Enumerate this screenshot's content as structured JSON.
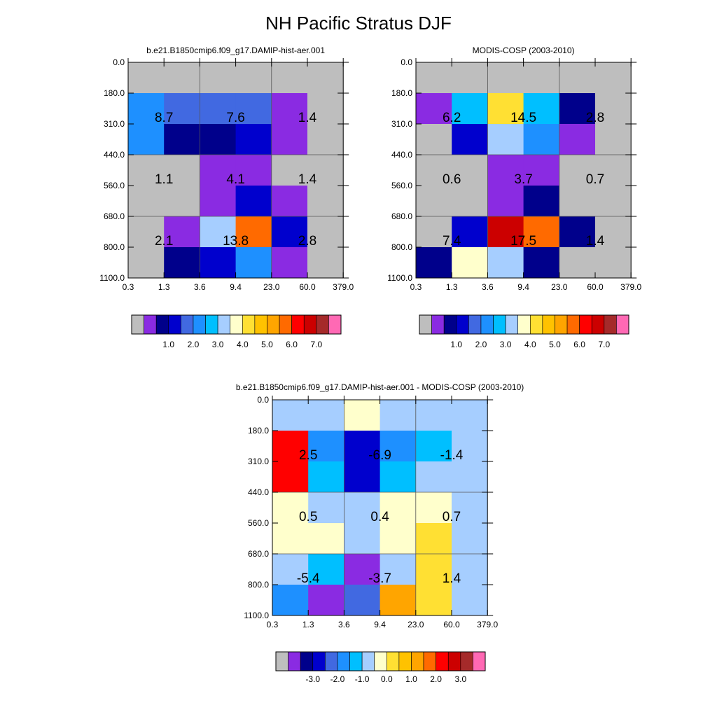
{
  "title": "NH Pacific Stratus DJF",
  "chart_data": [
    {
      "type": "heatmap",
      "title": "b.e21.B1850cmip6.f09_g17.DAMIP-hist-aer.001",
      "x_ticks": [
        "0.3",
        "1.3",
        "3.6",
        "9.4",
        "23.0",
        "60.0",
        "379.0"
      ],
      "y_ticks": [
        "0.0",
        "180.0",
        "310.0",
        "440.0",
        "560.0",
        "680.0",
        "800.0",
        "1100.0"
      ],
      "cells": [
        [
          "#BEBEBE",
          "#BEBEBE",
          "#BEBEBE",
          "#BEBEBE",
          "#BEBEBE",
          "#BEBEBE"
        ],
        [
          "#1E90FF",
          "#4169E1",
          "#4169E1",
          "#4169E1",
          "#8A2BE2",
          "#BEBEBE"
        ],
        [
          "#1E90FF",
          "#00008B",
          "#00008B",
          "#0000CD",
          "#8A2BE2",
          "#BEBEBE"
        ],
        [
          "#BEBEBE",
          "#BEBEBE",
          "#8A2BE2",
          "#8A2BE2",
          "#BEBEBE",
          "#BEBEBE"
        ],
        [
          "#BEBEBE",
          "#BEBEBE",
          "#8A2BE2",
          "#0000CD",
          "#8A2BE2",
          "#BEBEBE"
        ],
        [
          "#BEBEBE",
          "#8A2BE2",
          "#A6CEFF",
          "#FF6A00",
          "#0000CD",
          "#BEBEBE"
        ],
        [
          "#BEBEBE",
          "#00008B",
          "#0000CD",
          "#1E90FF",
          "#8A2BE2",
          "#BEBEBE"
        ]
      ],
      "labels": [
        {
          "row": 1,
          "col": 1,
          "text": "8.7"
        },
        {
          "row": 1,
          "col": 3,
          "text": "7.6"
        },
        {
          "row": 1,
          "col": 5,
          "text": "1.4"
        },
        {
          "row": 3,
          "col": 1,
          "text": "1.1"
        },
        {
          "row": 3,
          "col": 3,
          "text": "4.1"
        },
        {
          "row": 3,
          "col": 5,
          "text": "1.4"
        },
        {
          "row": 5,
          "col": 1,
          "text": "2.1"
        },
        {
          "row": 5,
          "col": 3,
          "text": "13.8"
        },
        {
          "row": 5,
          "col": 5,
          "text": "2.8"
        }
      ],
      "colorbar": {
        "colors": [
          "#BEBEBE",
          "#8A2BE2",
          "#00008B",
          "#0000CD",
          "#4169E1",
          "#1E90FF",
          "#00BFFF",
          "#A6CEFF",
          "#FFFFCC",
          "#FFE033",
          "#FFC200",
          "#FFA500",
          "#FF6A00",
          "#FF0000",
          "#CC0000",
          "#A52A2A",
          "#FF69B4"
        ],
        "labels": [
          "1.0",
          "2.0",
          "3.0",
          "4.0",
          "5.0",
          "6.0",
          "7.0"
        ]
      }
    },
    {
      "type": "heatmap",
      "title": "MODIS-COSP (2003-2010)",
      "x_ticks": [
        "0.3",
        "1.3",
        "3.6",
        "9.4",
        "23.0",
        "60.0",
        "379.0"
      ],
      "y_ticks": [
        "0.0",
        "180.0",
        "310.0",
        "440.0",
        "560.0",
        "680.0",
        "800.0",
        "1100.0"
      ],
      "cells": [
        [
          "#BEBEBE",
          "#BEBEBE",
          "#BEBEBE",
          "#BEBEBE",
          "#BEBEBE",
          "#BEBEBE"
        ],
        [
          "#8A2BE2",
          "#00BFFF",
          "#FFE033",
          "#00BFFF",
          "#00008B",
          "#BEBEBE"
        ],
        [
          "#BEBEBE",
          "#0000CD",
          "#A6CEFF",
          "#1E90FF",
          "#8A2BE2",
          "#BEBEBE"
        ],
        [
          "#BEBEBE",
          "#BEBEBE",
          "#8A2BE2",
          "#8A2BE2",
          "#BEBEBE",
          "#BEBEBE"
        ],
        [
          "#BEBEBE",
          "#BEBEBE",
          "#8A2BE2",
          "#00008B",
          "#BEBEBE",
          "#BEBEBE"
        ],
        [
          "#BEBEBE",
          "#0000CD",
          "#CC0000",
          "#FF6A00",
          "#00008B",
          "#BEBEBE"
        ],
        [
          "#00008B",
          "#FFFFCC",
          "#A6CEFF",
          "#00008B",
          "#BEBEBE",
          "#BEBEBE"
        ]
      ],
      "labels": [
        {
          "row": 1,
          "col": 1,
          "text": "6.2"
        },
        {
          "row": 1,
          "col": 3,
          "text": "14.5"
        },
        {
          "row": 1,
          "col": 5,
          "text": "2.8"
        },
        {
          "row": 3,
          "col": 1,
          "text": "0.6"
        },
        {
          "row": 3,
          "col": 3,
          "text": "3.7"
        },
        {
          "row": 3,
          "col": 5,
          "text": "0.7"
        },
        {
          "row": 5,
          "col": 1,
          "text": "7.4"
        },
        {
          "row": 5,
          "col": 3,
          "text": "17.5"
        },
        {
          "row": 5,
          "col": 5,
          "text": "1.4"
        }
      ],
      "colorbar": {
        "colors": [
          "#BEBEBE",
          "#8A2BE2",
          "#00008B",
          "#0000CD",
          "#4169E1",
          "#1E90FF",
          "#00BFFF",
          "#A6CEFF",
          "#FFFFCC",
          "#FFE033",
          "#FFC200",
          "#FFA500",
          "#FF6A00",
          "#FF0000",
          "#CC0000",
          "#A52A2A",
          "#FF69B4"
        ],
        "labels": [
          "1.0",
          "2.0",
          "3.0",
          "4.0",
          "5.0",
          "6.0",
          "7.0"
        ]
      }
    },
    {
      "type": "heatmap",
      "title": "b.e21.B1850cmip6.f09_g17.DAMIP-hist-aer.001 - MODIS-COSP (2003-2010)",
      "x_ticks": [
        "0.3",
        "1.3",
        "3.6",
        "9.4",
        "23.0",
        "60.0",
        "379.0"
      ],
      "y_ticks": [
        "0.0",
        "180.0",
        "310.0",
        "440.0",
        "560.0",
        "680.0",
        "800.0",
        "1100.0"
      ],
      "cells": [
        [
          "#A6CEFF",
          "#A6CEFF",
          "#FFFFCC",
          "#A6CEFF",
          "#A6CEFF",
          "#A6CEFF"
        ],
        [
          "#FF0000",
          "#1E90FF",
          "#0000CD",
          "#1E90FF",
          "#00BFFF",
          "#A6CEFF"
        ],
        [
          "#FF0000",
          "#00BFFF",
          "#0000CD",
          "#00BFFF",
          "#A6CEFF",
          "#A6CEFF"
        ],
        [
          "#FFFFCC",
          "#A6CEFF",
          "#A6CEFF",
          "#FFFFCC",
          "#FFFFCC",
          "#A6CEFF"
        ],
        [
          "#FFFFCC",
          "#FFFFCC",
          "#A6CEFF",
          "#FFFFCC",
          "#FFE033",
          "#A6CEFF"
        ],
        [
          "#A6CEFF",
          "#00BFFF",
          "#8A2BE2",
          "#A6CEFF",
          "#FFE033",
          "#A6CEFF"
        ],
        [
          "#1E90FF",
          "#8A2BE2",
          "#4169E1",
          "#FFA500",
          "#FFE033",
          "#A6CEFF"
        ]
      ],
      "labels": [
        {
          "row": 1,
          "col": 1,
          "text": "2.5"
        },
        {
          "row": 1,
          "col": 3,
          "text": "-6.9"
        },
        {
          "row": 1,
          "col": 5,
          "text": "-1.4"
        },
        {
          "row": 3,
          "col": 1,
          "text": "0.5"
        },
        {
          "row": 3,
          "col": 3,
          "text": "0.4"
        },
        {
          "row": 3,
          "col": 5,
          "text": "0.7"
        },
        {
          "row": 5,
          "col": 1,
          "text": "-5.4"
        },
        {
          "row": 5,
          "col": 3,
          "text": "-3.7"
        },
        {
          "row": 5,
          "col": 5,
          "text": "1.4"
        }
      ],
      "colorbar": {
        "colors": [
          "#BEBEBE",
          "#8A2BE2",
          "#00008B",
          "#0000CD",
          "#4169E1",
          "#1E90FF",
          "#00BFFF",
          "#A6CEFF",
          "#FFFFCC",
          "#FFE033",
          "#FFC200",
          "#FFA500",
          "#FF6A00",
          "#FF0000",
          "#CC0000",
          "#A52A2A",
          "#FF69B4"
        ],
        "labels": [
          "-3.0",
          "-2.0",
          "-1.0",
          "0.0",
          "1.0",
          "2.0",
          "3.0"
        ]
      }
    }
  ]
}
